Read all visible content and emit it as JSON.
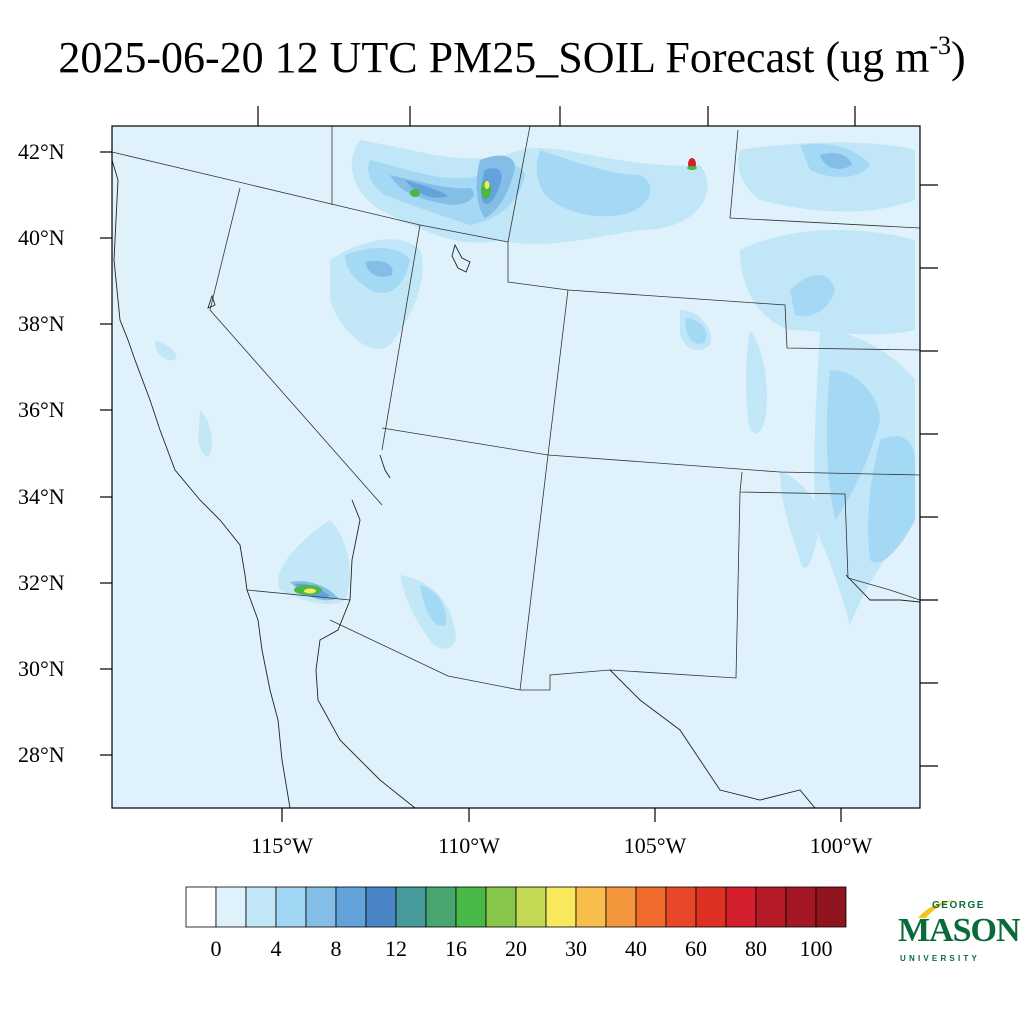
{
  "title": {
    "text": "2025-06-20 12 UTC PM25_SOIL Forecast (ug m",
    "exponent": "-3",
    "close": ")"
  },
  "map": {
    "lat_labels": [
      "42°N",
      "40°N",
      "38°N",
      "36°N",
      "34°N",
      "32°N",
      "30°N",
      "28°N"
    ],
    "lon_labels": [
      "115°W",
      "110°W",
      "105°W",
      "100°W"
    ]
  },
  "colorbar": {
    "labels": [
      "0",
      "4",
      "8",
      "12",
      "16",
      "20",
      "30",
      "40",
      "60",
      "80",
      "100"
    ],
    "colors": [
      "#ffffff",
      "#dff2fb",
      "#c0e6f7",
      "#a1d7f4",
      "#84bde6",
      "#64a2db",
      "#4a86c6",
      "#479a9a",
      "#48a570",
      "#4ab847",
      "#86c64b",
      "#c3d853",
      "#f8e85e",
      "#f8bd4b",
      "#f4963c",
      "#f06a2c",
      "#e84828",
      "#df3024",
      "#d21f2b",
      "#b71a27",
      "#a31823",
      "#8f141d"
    ]
  },
  "logo": {
    "line1": "GEORGE",
    "line2": "MASON",
    "line3": "UNIVERSITY",
    "color": "#0a6b3a"
  }
}
